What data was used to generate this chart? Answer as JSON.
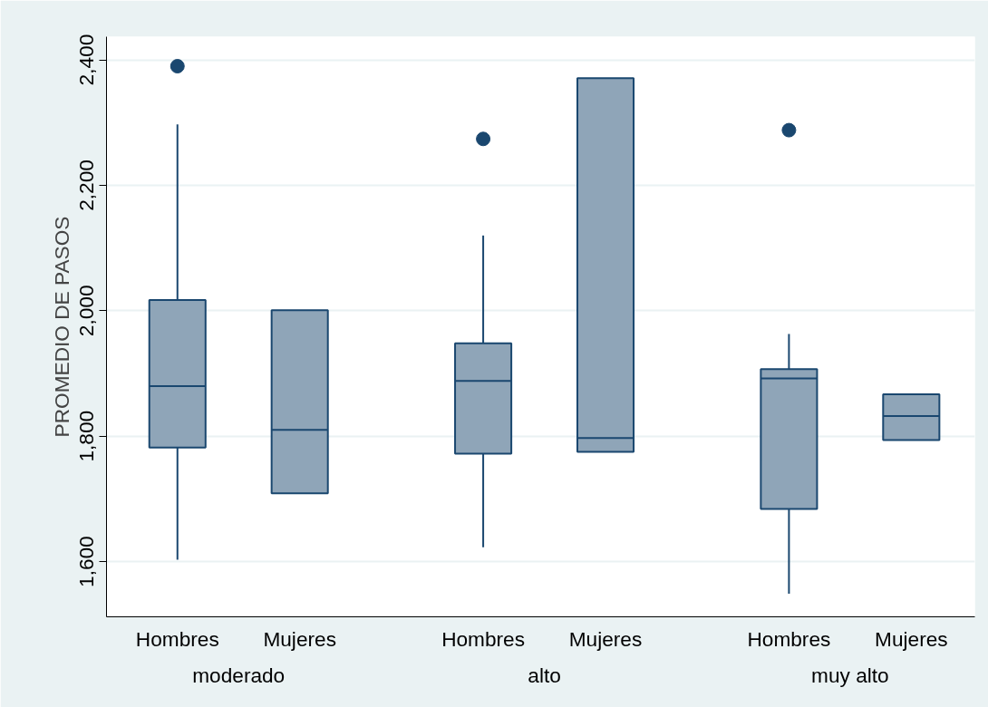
{
  "chart_data": {
    "type": "box",
    "ylabel": "PROMEDIO DE PASOS",
    "categories": [
      "Hombres",
      "Mujeres",
      "Hombres",
      "Mujeres",
      "Hombres",
      "Mujeres"
    ],
    "annotations": [
      "moderado",
      "alto",
      "muy alto"
    ],
    "boxes": [
      {
        "low": 1603,
        "q1": 1782,
        "median": 1880,
        "q3": 2017,
        "high": 2297,
        "outliers": [
          2390
        ]
      },
      {
        "low": 1709,
        "q1": 1709,
        "median": 1810,
        "q3": 2001,
        "high": 2001
      },
      {
        "low": 1623,
        "q1": 1772,
        "median": 1888,
        "q3": 1948,
        "high": 2120,
        "outliers": [
          2274
        ]
      },
      {
        "low": 1775,
        "q1": 1775,
        "median": 1797,
        "q3": 2371,
        "high": 2371
      },
      {
        "low": 1549,
        "q1": 1684,
        "median": 1892,
        "q3": 1907,
        "high": 1963,
        "outliers": [
          2288
        ]
      },
      {
        "low": 1794,
        "q1": 1794,
        "median": 1832,
        "q3": 1867,
        "high": 1867
      }
    ],
    "color": "#8fa5b8",
    "ylim": [
      1512,
      2437
    ],
    "yticks": [
      {
        "value": 1600,
        "label": "1,600"
      },
      {
        "value": 1800,
        "label": "1,800"
      },
      {
        "value": 2000,
        "label": "2,000"
      },
      {
        "value": 2200,
        "label": "2,200"
      },
      {
        "value": 2400,
        "label": "2,400"
      }
    ],
    "grid": "y",
    "marker": "circle"
  }
}
